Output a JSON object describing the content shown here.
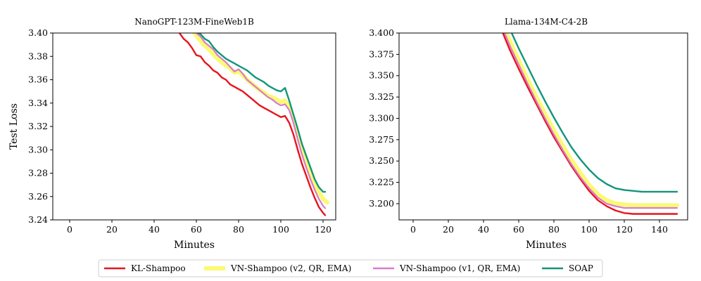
{
  "chart_data": [
    {
      "type": "line",
      "title": "NanoGPT-123M-FineWeb1B",
      "xlabel": "Minutes",
      "ylabel": "Test Loss",
      "xlim": [
        -8,
        126
      ],
      "ylim": [
        3.24,
        3.4
      ],
      "xticks": [
        0,
        20,
        40,
        60,
        80,
        100,
        120
      ],
      "xtick_labels": [
        "0",
        "20",
        "40",
        "60",
        "80",
        "100",
        "120"
      ],
      "yticks": [
        3.24,
        3.26,
        3.28,
        3.3,
        3.32,
        3.34,
        3.36,
        3.38,
        3.4
      ],
      "ytick_labels": [
        "3.24",
        "3.26",
        "3.28",
        "3.30",
        "3.32",
        "3.34",
        "3.36",
        "3.38",
        "3.40"
      ],
      "grid": false,
      "series": [
        {
          "name": "KL-Shampoo",
          "color": "#e8141c",
          "width": 2.4,
          "x": [
            52,
            54,
            56,
            58,
            60,
            62,
            64,
            66,
            68,
            70,
            72,
            74,
            76,
            78,
            80,
            82,
            84,
            86,
            88,
            90,
            92,
            94,
            96,
            98,
            100,
            102,
            104,
            106,
            108,
            110,
            112,
            114,
            116,
            118,
            120,
            121
          ],
          "y": [
            3.4,
            3.395,
            3.392,
            3.387,
            3.381,
            3.38,
            3.375,
            3.372,
            3.368,
            3.366,
            3.362,
            3.36,
            3.356,
            3.354,
            3.352,
            3.35,
            3.347,
            3.344,
            3.341,
            3.338,
            3.336,
            3.334,
            3.332,
            3.33,
            3.328,
            3.329,
            3.323,
            3.313,
            3.3,
            3.288,
            3.278,
            3.268,
            3.259,
            3.251,
            3.246,
            3.244
          ]
        },
        {
          "name": "VN-Shampoo (v2, QR, EMA)",
          "color": "#fafa73",
          "width": 6,
          "x": [
            59,
            60,
            62,
            64,
            66,
            68,
            70,
            72,
            74,
            76,
            78,
            80,
            82,
            84,
            86,
            88,
            90,
            92,
            94,
            96,
            98,
            100,
            102,
            104,
            106,
            108,
            110,
            112,
            114,
            116,
            118,
            120,
            122
          ],
          "y": [
            3.4,
            3.398,
            3.393,
            3.389,
            3.386,
            3.382,
            3.378,
            3.375,
            3.372,
            3.37,
            3.366,
            3.367,
            3.364,
            3.36,
            3.357,
            3.354,
            3.351,
            3.349,
            3.346,
            3.345,
            3.343,
            3.341,
            3.342,
            3.337,
            3.327,
            3.313,
            3.302,
            3.292,
            3.282,
            3.272,
            3.264,
            3.258,
            3.255
          ]
        },
        {
          "name": "VN-Shampoo (v1, QR, EMA)",
          "color": "#d87ad1",
          "width": 2.2,
          "x": [
            60,
            62,
            64,
            66,
            68,
            70,
            72,
            74,
            76,
            78,
            80,
            82,
            84,
            86,
            88,
            90,
            92,
            94,
            96,
            98,
            100,
            102,
            104,
            106,
            108,
            110,
            112,
            114,
            116,
            118,
            120,
            121
          ],
          "y": [
            3.4,
            3.397,
            3.392,
            3.389,
            3.386,
            3.381,
            3.378,
            3.375,
            3.371,
            3.367,
            3.369,
            3.365,
            3.36,
            3.357,
            3.354,
            3.351,
            3.348,
            3.345,
            3.343,
            3.34,
            3.338,
            3.339,
            3.334,
            3.323,
            3.309,
            3.296,
            3.285,
            3.275,
            3.266,
            3.258,
            3.252,
            3.25
          ]
        },
        {
          "name": "SOAP",
          "color": "#12957a",
          "width": 2.4,
          "x": [
            61,
            62,
            64,
            66,
            68,
            70,
            72,
            74,
            76,
            78,
            80,
            82,
            84,
            86,
            88,
            90,
            92,
            94,
            96,
            98,
            100,
            102,
            104,
            106,
            108,
            110,
            112,
            114,
            116,
            118,
            120,
            121
          ],
          "y": [
            3.4,
            3.399,
            3.395,
            3.393,
            3.388,
            3.384,
            3.381,
            3.378,
            3.376,
            3.374,
            3.372,
            3.37,
            3.368,
            3.365,
            3.362,
            3.36,
            3.358,
            3.355,
            3.353,
            3.351,
            3.35,
            3.353,
            3.342,
            3.33,
            3.318,
            3.305,
            3.295,
            3.285,
            3.275,
            3.268,
            3.264,
            3.264
          ]
        }
      ]
    },
    {
      "type": "line",
      "title": "Llama-134M-C4-2B",
      "xlabel": "Minutes",
      "ylabel": "",
      "xlim": [
        -8,
        156
      ],
      "ylim": [
        3.181,
        3.4
      ],
      "xticks": [
        0,
        20,
        40,
        60,
        80,
        100,
        120,
        140
      ],
      "xtick_labels": [
        "0",
        "20",
        "40",
        "60",
        "80",
        "100",
        "120",
        "140"
      ],
      "yticks": [
        3.2,
        3.225,
        3.25,
        3.275,
        3.3,
        3.325,
        3.35,
        3.375,
        3.4
      ],
      "ytick_labels": [
        "3.200",
        "3.225",
        "3.250",
        "3.275",
        "3.300",
        "3.325",
        "3.350",
        "3.375",
        "3.400"
      ],
      "grid": false,
      "series": [
        {
          "name": "KL-Shampoo",
          "color": "#e8141c",
          "width": 2.4,
          "x": [
            51,
            55,
            60,
            65,
            70,
            75,
            80,
            85,
            90,
            95,
            100,
            105,
            110,
            115,
            120,
            125,
            130,
            135,
            140,
            145,
            150
          ],
          "y": [
            3.4,
            3.38,
            3.358,
            3.337,
            3.317,
            3.297,
            3.278,
            3.261,
            3.244,
            3.229,
            3.215,
            3.204,
            3.197,
            3.192,
            3.189,
            3.188,
            3.188,
            3.188,
            3.188,
            3.188,
            3.188
          ]
        },
        {
          "name": "VN-Shampoo (v2, QR, EMA)",
          "color": "#fafa73",
          "width": 6,
          "x": [
            53,
            55,
            60,
            65,
            70,
            75,
            80,
            85,
            90,
            95,
            100,
            105,
            110,
            115,
            120,
            125,
            130,
            135,
            140,
            145,
            150
          ],
          "y": [
            3.4,
            3.39,
            3.368,
            3.346,
            3.325,
            3.305,
            3.286,
            3.268,
            3.251,
            3.236,
            3.222,
            3.211,
            3.204,
            3.2,
            3.199,
            3.198,
            3.198,
            3.198,
            3.198,
            3.198,
            3.198
          ]
        },
        {
          "name": "VN-Shampoo (v1, QR, EMA)",
          "color": "#d87ad1",
          "width": 2.2,
          "x": [
            52,
            55,
            60,
            65,
            70,
            75,
            80,
            85,
            90,
            95,
            100,
            105,
            110,
            115,
            120,
            125,
            130,
            135,
            140,
            145,
            150
          ],
          "y": [
            3.4,
            3.385,
            3.363,
            3.341,
            3.32,
            3.3,
            3.281,
            3.263,
            3.246,
            3.231,
            3.218,
            3.207,
            3.2,
            3.197,
            3.195,
            3.195,
            3.195,
            3.195,
            3.195,
            3.195,
            3.195
          ]
        },
        {
          "name": "SOAP",
          "color": "#12957a",
          "width": 2.4,
          "x": [
            56,
            60,
            65,
            70,
            75,
            80,
            85,
            90,
            95,
            100,
            105,
            110,
            115,
            120,
            125,
            130,
            135,
            140,
            145,
            150
          ],
          "y": [
            3.4,
            3.382,
            3.361,
            3.34,
            3.32,
            3.301,
            3.283,
            3.266,
            3.252,
            3.24,
            3.23,
            3.223,
            3.218,
            3.216,
            3.215,
            3.214,
            3.214,
            3.214,
            3.214,
            3.214
          ]
        }
      ]
    }
  ],
  "legend": {
    "position": "bottom-center",
    "items": [
      {
        "label": "KL-Shampoo",
        "color": "#e8141c"
      },
      {
        "label": "VN-Shampoo (v2, QR, EMA)",
        "color": "#fafa73"
      },
      {
        "label": "VN-Shampoo (v1, QR, EMA)",
        "color": "#d87ad1"
      },
      {
        "label": "SOAP",
        "color": "#12957a"
      }
    ]
  }
}
